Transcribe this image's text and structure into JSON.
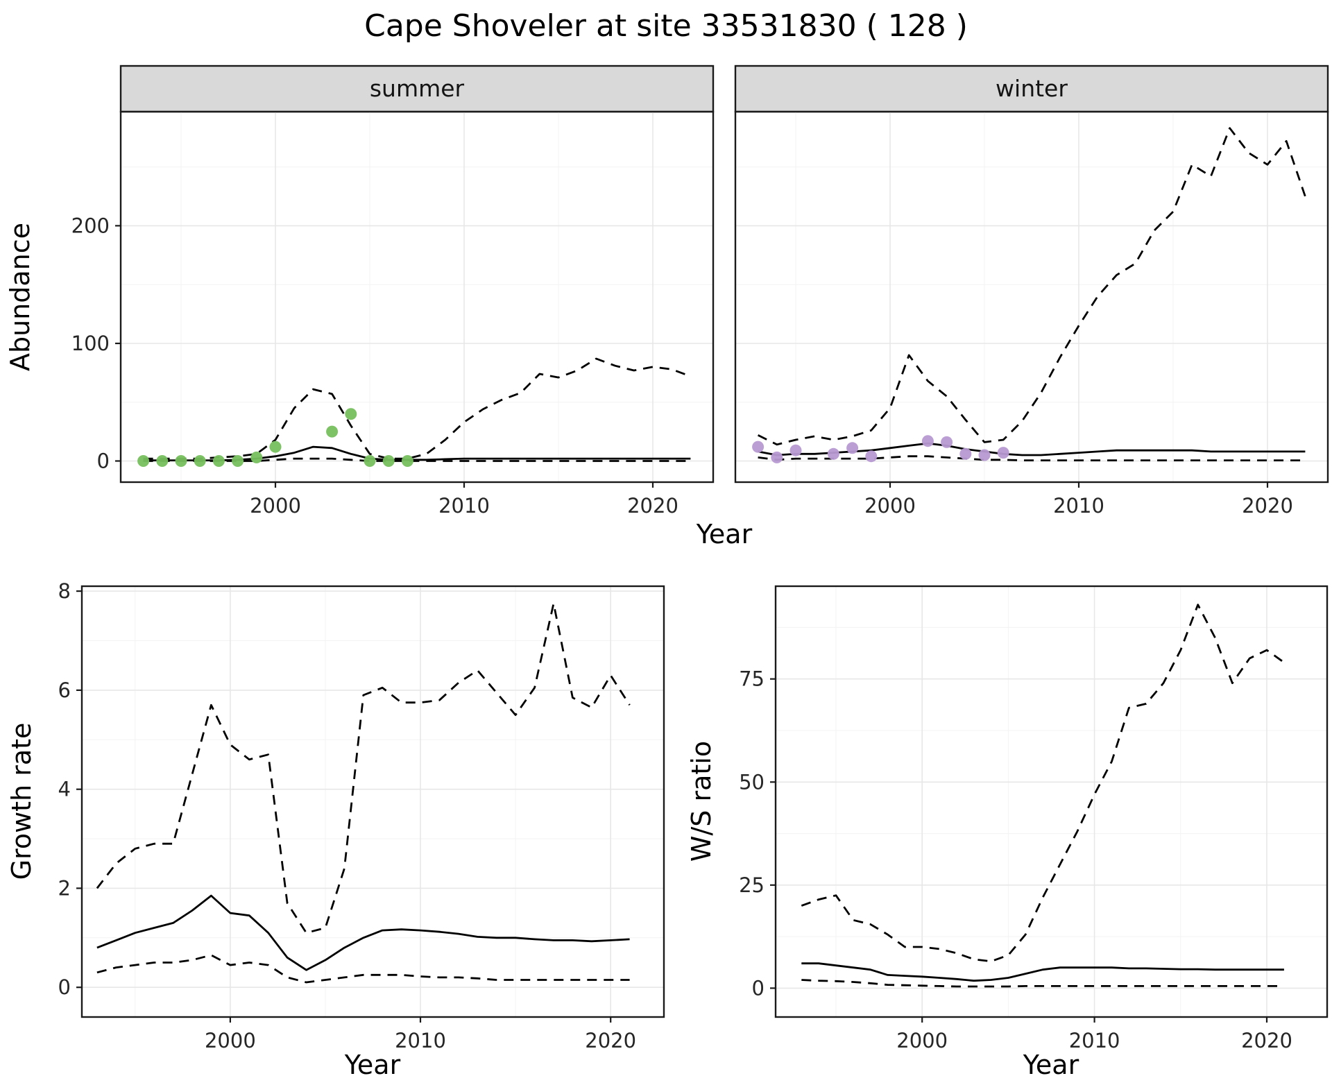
{
  "title": "Cape Shoveler at site 33531830 ( 128 )",
  "abundance": {
    "ylabel": "Abundance",
    "xlabel": "Year",
    "facets": {
      "summer": "summer",
      "winter": "winter"
    }
  },
  "growth": {
    "ylabel": "Growth rate",
    "xlabel": "Year"
  },
  "ratio": {
    "ylabel": "W/S ratio",
    "xlabel": "Year"
  },
  "chart_data": [
    {
      "id": "abundance-summer",
      "type": "line",
      "facet": "summer",
      "xlabel": "Year",
      "ylabel": "Abundance",
      "xlim": [
        1991.8,
        2023.2
      ],
      "ylim": [
        -18,
        297
      ],
      "x_ticks": [
        2000,
        2010,
        2020
      ],
      "y_ticks": [
        0,
        100,
        200
      ],
      "grid": true,
      "legend_position": "none",
      "series": [
        {
          "name": "upper-dashed",
          "style": "dashed",
          "color": "#000000",
          "x": [
            1993,
            1994,
            1995,
            1996,
            1997,
            1998,
            1999,
            2000,
            2001,
            2002,
            2003,
            2004,
            2005,
            2006,
            2007,
            2008,
            2009,
            2010,
            2011,
            2012,
            2013,
            2014,
            2015,
            2016,
            2017,
            2018,
            2019,
            2020,
            2021,
            2022
          ],
          "y": [
            2,
            2,
            2,
            2,
            3,
            4,
            6,
            18,
            45,
            61,
            57,
            30,
            6,
            2,
            2,
            6,
            18,
            33,
            44,
            52,
            58,
            74,
            71,
            77,
            87,
            81,
            77,
            80,
            78,
            72
          ]
        },
        {
          "name": "median-solid",
          "style": "solid",
          "color": "#000000",
          "x": [
            1993,
            1994,
            1995,
            1996,
            1997,
            1998,
            1999,
            2000,
            2001,
            2002,
            2003,
            2004,
            2005,
            2006,
            2007,
            2008,
            2009,
            2010,
            2011,
            2012,
            2013,
            2014,
            2015,
            2016,
            2017,
            2018,
            2019,
            2020,
            2021,
            2022
          ],
          "y": [
            0.5,
            0.5,
            0.5,
            0.5,
            0.5,
            1,
            2,
            4,
            7,
            12,
            11,
            6,
            2,
            1,
            1,
            1,
            1.5,
            2,
            2,
            2,
            2,
            2,
            2,
            2,
            2,
            2,
            2,
            2,
            2,
            2
          ]
        },
        {
          "name": "lower-dashed",
          "style": "dashed",
          "color": "#000000",
          "x": [
            1993,
            1994,
            1995,
            1996,
            1997,
            1998,
            1999,
            2000,
            2001,
            2002,
            2003,
            2004,
            2005,
            2006,
            2007,
            2008,
            2009,
            2010,
            2011,
            2012,
            2013,
            2014,
            2015,
            2016,
            2017,
            2018,
            2019,
            2020,
            2021,
            2022
          ],
          "y": [
            0,
            0,
            0,
            0,
            0,
            0,
            0,
            1,
            2,
            2,
            2,
            1,
            0,
            0,
            0,
            0,
            0,
            0,
            0,
            0,
            0,
            0,
            0,
            0,
            0,
            0,
            0,
            0,
            0,
            0
          ]
        },
        {
          "name": "observed-points",
          "style": "points",
          "color": "#76c05e",
          "x": [
            1993,
            1994,
            1995,
            1996,
            1997,
            1998,
            1999,
            2000,
            2003,
            2004,
            2005,
            2006,
            2007
          ],
          "y": [
            0,
            0,
            0,
            0,
            0,
            0,
            3,
            12,
            25,
            40,
            0,
            0,
            0
          ]
        }
      ]
    },
    {
      "id": "abundance-winter",
      "type": "line",
      "facet": "winter",
      "xlabel": "Year",
      "ylabel": "Abundance",
      "xlim": [
        1991.8,
        2023.2
      ],
      "ylim": [
        -18,
        297
      ],
      "x_ticks": [
        2000,
        2010,
        2020
      ],
      "y_ticks": [
        0,
        100,
        200
      ],
      "grid": true,
      "legend_position": "none",
      "series": [
        {
          "name": "upper-dashed",
          "style": "dashed",
          "color": "#000000",
          "x": [
            1993,
            1994,
            1995,
            1996,
            1997,
            1998,
            1999,
            2000,
            2001,
            2002,
            2003,
            2004,
            2005,
            2006,
            2007,
            2008,
            2009,
            2010,
            2011,
            2012,
            2013,
            2014,
            2015,
            2016,
            2017,
            2018,
            2019,
            2020,
            2021,
            2022
          ],
          "y": [
            22,
            14,
            18,
            21,
            18,
            21,
            26,
            45,
            90,
            68,
            55,
            35,
            16,
            18,
            34,
            58,
            88,
            115,
            140,
            158,
            168,
            196,
            212,
            252,
            242,
            283,
            262,
            252,
            272,
            225
          ]
        },
        {
          "name": "median-solid",
          "style": "solid",
          "color": "#000000",
          "x": [
            1993,
            1994,
            1995,
            1996,
            1997,
            1998,
            1999,
            2000,
            2001,
            2002,
            2003,
            2004,
            2005,
            2006,
            2007,
            2008,
            2009,
            2010,
            2011,
            2012,
            2013,
            2014,
            2015,
            2016,
            2017,
            2018,
            2019,
            2020,
            2021,
            2022
          ],
          "y": [
            8,
            5,
            6,
            6,
            7,
            8,
            9,
            11,
            13,
            15,
            13,
            10,
            8,
            6,
            5,
            5,
            6,
            7,
            8,
            9,
            9,
            9,
            9,
            9,
            8,
            8,
            8,
            8,
            8,
            8
          ]
        },
        {
          "name": "lower-dashed",
          "style": "dashed",
          "color": "#000000",
          "x": [
            1993,
            1994,
            1995,
            1996,
            1997,
            1998,
            1999,
            2000,
            2001,
            2002,
            2003,
            2004,
            2005,
            2006,
            2007,
            2008,
            2009,
            2010,
            2011,
            2012,
            2013,
            2014,
            2015,
            2016,
            2017,
            2018,
            2019,
            2020,
            2021,
            2022
          ],
          "y": [
            3,
            1,
            2,
            2,
            2,
            2,
            2,
            3,
            4,
            4,
            3,
            2,
            1,
            1,
            0.5,
            0.5,
            0.5,
            0.5,
            0.5,
            0.5,
            0.5,
            0.5,
            0.5,
            0.5,
            0.5,
            0.5,
            0.5,
            0.5,
            0.5,
            0.5
          ]
        },
        {
          "name": "observed-points",
          "style": "points",
          "color": "#b79ad2",
          "x": [
            1993,
            1994,
            1995,
            1997,
            1998,
            1999,
            2002,
            2003,
            2004,
            2005,
            2006
          ],
          "y": [
            12,
            3,
            9,
            6,
            11,
            4,
            17,
            16,
            6,
            5,
            7
          ]
        }
      ]
    },
    {
      "id": "growth-rate",
      "type": "line",
      "xlabel": "Year",
      "ylabel": "Growth rate",
      "xlim": [
        1992.2,
        2022.8
      ],
      "ylim": [
        -0.6,
        8.1
      ],
      "x_ticks": [
        2000,
        2010,
        2020
      ],
      "y_ticks": [
        0,
        2,
        4,
        6,
        8
      ],
      "grid": true,
      "legend_position": "none",
      "series": [
        {
          "name": "upper-dashed",
          "style": "dashed",
          "color": "#000000",
          "x": [
            1993,
            1994,
            1995,
            1996,
            1997,
            1998,
            1999,
            2000,
            2001,
            2002,
            2003,
            2004,
            2005,
            2006,
            2007,
            2008,
            2009,
            2010,
            2011,
            2012,
            2013,
            2014,
            2015,
            2016,
            2017,
            2018,
            2019,
            2020,
            2021
          ],
          "y": [
            2,
            2.5,
            2.8,
            2.9,
            2.9,
            4.3,
            5.7,
            4.9,
            4.6,
            4.7,
            1.7,
            1.1,
            1.2,
            2.4,
            5.9,
            6.05,
            5.75,
            5.75,
            5.8,
            6.15,
            6.4,
            5.95,
            5.5,
            6.05,
            7.75,
            5.85,
            5.65,
            6.3,
            5.7
          ]
        },
        {
          "name": "median-solid",
          "style": "solid",
          "color": "#000000",
          "x": [
            1993,
            1994,
            1995,
            1996,
            1997,
            1998,
            1999,
            2000,
            2001,
            2002,
            2003,
            2004,
            2005,
            2006,
            2007,
            2008,
            2009,
            2010,
            2011,
            2012,
            2013,
            2014,
            2015,
            2016,
            2017,
            2018,
            2019,
            2020,
            2021
          ],
          "y": [
            0.8,
            0.95,
            1.1,
            1.2,
            1.3,
            1.55,
            1.85,
            1.5,
            1.45,
            1.1,
            0.6,
            0.35,
            0.55,
            0.8,
            1,
            1.15,
            1.17,
            1.15,
            1.12,
            1.08,
            1.02,
            1,
            1,
            0.97,
            0.95,
            0.95,
            0.93,
            0.95,
            0.97
          ]
        },
        {
          "name": "lower-dashed",
          "style": "dashed",
          "color": "#000000",
          "x": [
            1993,
            1994,
            1995,
            1996,
            1997,
            1998,
            1999,
            2000,
            2001,
            2002,
            2003,
            2004,
            2005,
            2006,
            2007,
            2008,
            2009,
            2010,
            2011,
            2012,
            2013,
            2014,
            2015,
            2016,
            2017,
            2018,
            2019,
            2020,
            2021
          ],
          "y": [
            0.3,
            0.4,
            0.45,
            0.5,
            0.5,
            0.55,
            0.65,
            0.45,
            0.5,
            0.45,
            0.2,
            0.1,
            0.15,
            0.2,
            0.25,
            0.25,
            0.25,
            0.22,
            0.2,
            0.2,
            0.18,
            0.15,
            0.15,
            0.15,
            0.15,
            0.15,
            0.15,
            0.15,
            0.15
          ]
        }
      ]
    },
    {
      "id": "ws-ratio",
      "type": "line",
      "xlabel": "Year",
      "ylabel": "W/S ratio",
      "xlim": [
        1991.5,
        2023.5
      ],
      "ylim": [
        -7,
        97.5
      ],
      "x_ticks": [
        2000,
        2010,
        2020
      ],
      "y_ticks": [
        0,
        25,
        50,
        75
      ],
      "grid": true,
      "legend_position": "none",
      "series": [
        {
          "name": "upper-dashed",
          "style": "dashed",
          "color": "#000000",
          "x": [
            1993,
            1994,
            1995,
            1996,
            1997,
            1998,
            1999,
            2000,
            2001,
            2002,
            2003,
            2004,
            2005,
            2006,
            2007,
            2008,
            2009,
            2010,
            2011,
            2012,
            2013,
            2014,
            2015,
            2016,
            2017,
            2018,
            2019,
            2020,
            2021
          ],
          "y": [
            20,
            21.5,
            22.5,
            16.5,
            15.5,
            13,
            10,
            10,
            9.5,
            8.5,
            7,
            6.5,
            8,
            13,
            22,
            30,
            38,
            47,
            55,
            68,
            69,
            74,
            82,
            93,
            85,
            74,
            80,
            82,
            79
          ]
        },
        {
          "name": "median-solid",
          "style": "solid",
          "color": "#000000",
          "x": [
            1993,
            1994,
            1995,
            1996,
            1997,
            1998,
            1999,
            2000,
            2001,
            2002,
            2003,
            2004,
            2005,
            2006,
            2007,
            2008,
            2009,
            2010,
            2011,
            2012,
            2013,
            2014,
            2015,
            2016,
            2017,
            2018,
            2019,
            2020,
            2021
          ],
          "y": [
            6,
            6,
            5.5,
            5,
            4.5,
            3.2,
            3,
            2.8,
            2.5,
            2.2,
            1.8,
            2,
            2.5,
            3.5,
            4.5,
            5,
            5,
            5,
            5,
            4.8,
            4.8,
            4.7,
            4.6,
            4.6,
            4.5,
            4.5,
            4.5,
            4.5,
            4.5
          ]
        },
        {
          "name": "lower-dashed",
          "style": "dashed",
          "color": "#000000",
          "x": [
            1993,
            1994,
            1995,
            1996,
            1997,
            1998,
            1999,
            2000,
            2001,
            2002,
            2003,
            2004,
            2005,
            2006,
            2007,
            2008,
            2009,
            2010,
            2011,
            2012,
            2013,
            2014,
            2015,
            2016,
            2017,
            2018,
            2019,
            2020,
            2021
          ],
          "y": [
            2,
            1.8,
            1.7,
            1.5,
            1.2,
            0.8,
            0.7,
            0.6,
            0.5,
            0.4,
            0.4,
            0.4,
            0.4,
            0.5,
            0.5,
            0.5,
            0.5,
            0.5,
            0.5,
            0.5,
            0.5,
            0.5,
            0.5,
            0.5,
            0.5,
            0.5,
            0.5,
            0.5,
            0.5
          ]
        }
      ]
    }
  ]
}
